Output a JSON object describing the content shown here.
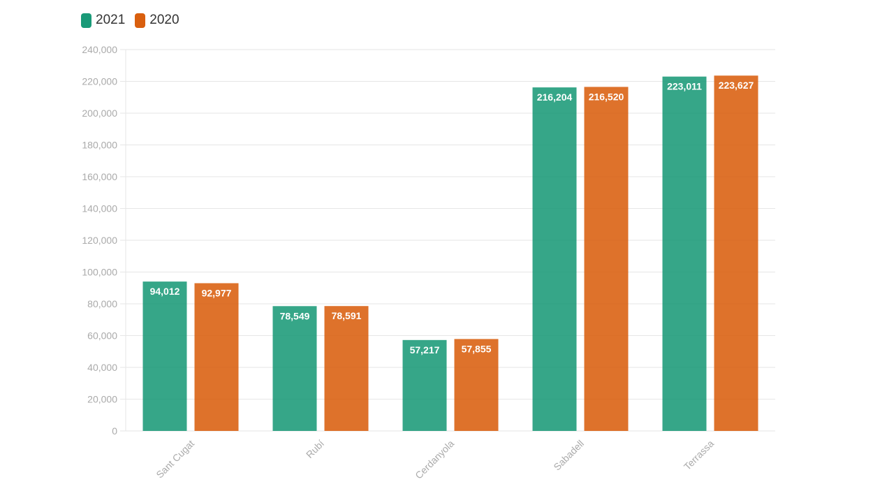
{
  "chart_data": {
    "type": "bar",
    "categories": [
      "Sant Cugat",
      "Rubí",
      "Cerdanyola",
      "Sabadell",
      "Terrassa"
    ],
    "series": [
      {
        "name": "2021",
        "values": [
          94012,
          78549,
          57217,
          216204,
          223011
        ],
        "value_labels": [
          "94,012",
          "78,549",
          "57,217",
          "216,204",
          "223,011"
        ],
        "color": "#1a9a78"
      },
      {
        "name": "2020",
        "values": [
          92977,
          78591,
          57855,
          216520,
          223627
        ],
        "value_labels": [
          "92,977",
          "78,591",
          "57,855",
          "216,520",
          "223,627"
        ],
        "color": "#d95f0e"
      }
    ],
    "ylim": [
      0,
      240000
    ],
    "yticks": [
      0,
      20000,
      40000,
      60000,
      80000,
      100000,
      120000,
      140000,
      160000,
      180000,
      200000,
      220000,
      240000
    ],
    "ytick_labels": [
      "0",
      "20,000",
      "40,000",
      "60,000",
      "80,000",
      "100,000",
      "120,000",
      "140,000",
      "160,000",
      "180,000",
      "200,000",
      "220,000",
      "240,000"
    ],
    "grid": true,
    "legend_position": "top-left"
  }
}
